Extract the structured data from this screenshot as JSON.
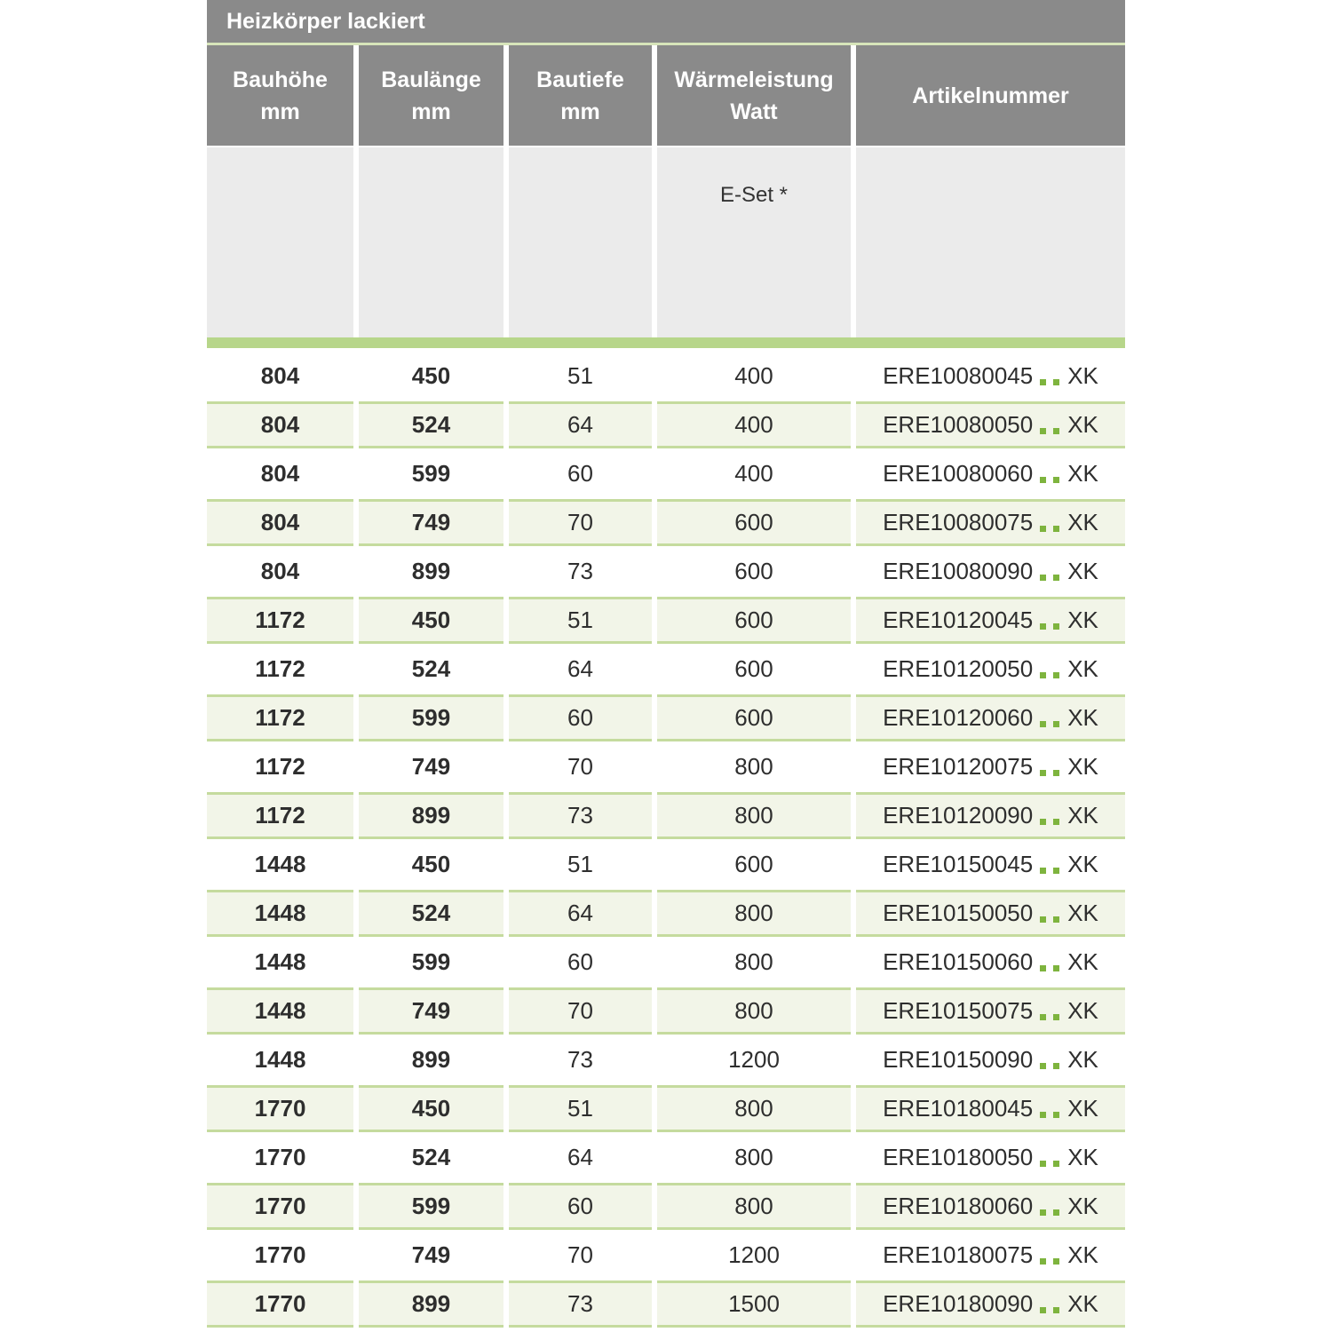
{
  "title": "Heizkörper lackiert",
  "columns": [
    {
      "line1": "Bauhöhe",
      "line2": "mm"
    },
    {
      "line1": "Baulänge",
      "line2": "mm"
    },
    {
      "line1": "Bautiefe",
      "line2": "mm"
    },
    {
      "line1": "Wärmeleistung",
      "line2": "Watt"
    },
    {
      "line1": "Artikelnummer",
      "line2": ""
    }
  ],
  "subheader": {
    "eset_label": "E-Set *"
  },
  "artikel_separator": "..",
  "rows": [
    {
      "bauhoehe": "804",
      "baulaenge": "450",
      "bautiefe": "51",
      "watt": "400",
      "artikel_code": "ERE10080045",
      "artikel_suffix": "XK"
    },
    {
      "bauhoehe": "804",
      "baulaenge": "524",
      "bautiefe": "64",
      "watt": "400",
      "artikel_code": "ERE10080050",
      "artikel_suffix": "XK"
    },
    {
      "bauhoehe": "804",
      "baulaenge": "599",
      "bautiefe": "60",
      "watt": "400",
      "artikel_code": "ERE10080060",
      "artikel_suffix": "XK"
    },
    {
      "bauhoehe": "804",
      "baulaenge": "749",
      "bautiefe": "70",
      "watt": "600",
      "artikel_code": "ERE10080075",
      "artikel_suffix": "XK"
    },
    {
      "bauhoehe": "804",
      "baulaenge": "899",
      "bautiefe": "73",
      "watt": "600",
      "artikel_code": "ERE10080090",
      "artikel_suffix": "XK"
    },
    {
      "bauhoehe": "1172",
      "baulaenge": "450",
      "bautiefe": "51",
      "watt": "600",
      "artikel_code": "ERE10120045",
      "artikel_suffix": "XK"
    },
    {
      "bauhoehe": "1172",
      "baulaenge": "524",
      "bautiefe": "64",
      "watt": "600",
      "artikel_code": "ERE10120050",
      "artikel_suffix": "XK"
    },
    {
      "bauhoehe": "1172",
      "baulaenge": "599",
      "bautiefe": "60",
      "watt": "600",
      "artikel_code": "ERE10120060",
      "artikel_suffix": "XK"
    },
    {
      "bauhoehe": "1172",
      "baulaenge": "749",
      "bautiefe": "70",
      "watt": "800",
      "artikel_code": "ERE10120075",
      "artikel_suffix": "XK"
    },
    {
      "bauhoehe": "1172",
      "baulaenge": "899",
      "bautiefe": "73",
      "watt": "800",
      "artikel_code": "ERE10120090",
      "artikel_suffix": "XK"
    },
    {
      "bauhoehe": "1448",
      "baulaenge": "450",
      "bautiefe": "51",
      "watt": "600",
      "artikel_code": "ERE10150045",
      "artikel_suffix": "XK"
    },
    {
      "bauhoehe": "1448",
      "baulaenge": "524",
      "bautiefe": "64",
      "watt": "800",
      "artikel_code": "ERE10150050",
      "artikel_suffix": "XK"
    },
    {
      "bauhoehe": "1448",
      "baulaenge": "599",
      "bautiefe": "60",
      "watt": "800",
      "artikel_code": "ERE10150060",
      "artikel_suffix": "XK"
    },
    {
      "bauhoehe": "1448",
      "baulaenge": "749",
      "bautiefe": "70",
      "watt": "800",
      "artikel_code": "ERE10150075",
      "artikel_suffix": "XK"
    },
    {
      "bauhoehe": "1448",
      "baulaenge": "899",
      "bautiefe": "73",
      "watt": "1200",
      "artikel_code": "ERE10150090",
      "artikel_suffix": "XK"
    },
    {
      "bauhoehe": "1770",
      "baulaenge": "450",
      "bautiefe": "51",
      "watt": "800",
      "artikel_code": "ERE10180045",
      "artikel_suffix": "XK"
    },
    {
      "bauhoehe": "1770",
      "baulaenge": "524",
      "bautiefe": "64",
      "watt": "800",
      "artikel_code": "ERE10180050",
      "artikel_suffix": "XK"
    },
    {
      "bauhoehe": "1770",
      "baulaenge": "599",
      "bautiefe": "60",
      "watt": "800",
      "artikel_code": "ERE10180060",
      "artikel_suffix": "XK"
    },
    {
      "bauhoehe": "1770",
      "baulaenge": "749",
      "bautiefe": "70",
      "watt": "1200",
      "artikel_code": "ERE10180075",
      "artikel_suffix": "XK"
    },
    {
      "bauhoehe": "1770",
      "baulaenge": "899",
      "bautiefe": "73",
      "watt": "1500",
      "artikel_code": "ERE10180090",
      "artikel_suffix": "XK"
    }
  ],
  "colors": {
    "header_gray": "#8a8a8a",
    "subheader_gray": "#ebebeb",
    "divider_green": "#b7d68a",
    "title_underline_green": "#d7e5ba",
    "row_green_bg": "#f2f5e8",
    "row_border_green": "#c5db9e",
    "dot_green": "#7eb43e",
    "title_text": "#ffffff",
    "body_text": "#2e2e2e"
  }
}
